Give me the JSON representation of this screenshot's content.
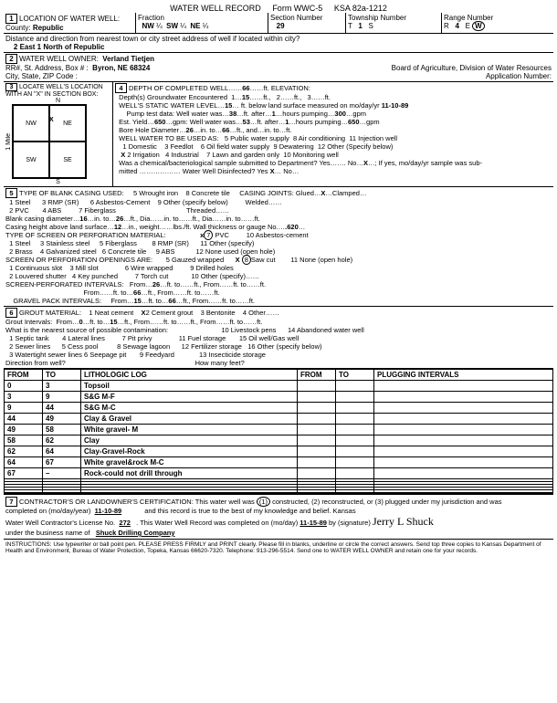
{
  "header": {
    "title": "WATER WELL RECORD",
    "form": "Form WWC-5",
    "ksa": "KSA 82a-1212"
  },
  "s1": {
    "label": "LOCATION OF WATER WELL:",
    "county_label": "County:",
    "county": "Republic",
    "fraction_label": "Fraction",
    "frac1": "NW",
    "frac2": "SW",
    "frac3": "NE",
    "section_label": "Section Number",
    "section": "29",
    "township_label": "Township Number",
    "township_t": "T",
    "township_n": "1",
    "township_s": "S",
    "range_label": "Range Number",
    "range_r": "R",
    "range_n": "4",
    "range_w": "W",
    "distance_label": "Distance and direction from nearest town or city street address of well if located within city?",
    "distance": "2 East   1 North   of Republic"
  },
  "s2": {
    "label": "WATER WELL OWNER:",
    "owner": "Verland Tietjen",
    "addr_label": "RR#, St. Address, Box # :",
    "addr": "Byron, NE 68324",
    "city_label": "City, State, ZIP Code",
    "board": "Board of Agriculture, Division of Water Resources",
    "appnum": "Application Number:"
  },
  "s3": {
    "label": "LOCATE WELL'S LOCATION WITH AN \"X\" IN SECTION BOX:",
    "nw": "NW",
    "ne": "NE",
    "sw": "SW",
    "se": "SE",
    "n": "N",
    "s": "S",
    "e": "E",
    "w": "W",
    "mile": "1 Mile"
  },
  "s4": {
    "label": "DEPTH OF COMPLETED WELL",
    "depth": "66",
    "elev_label": "ft. ELEVATION:",
    "gw_label": "Depth(s) Groundwater Encountered",
    "gw1": "15",
    "static_label": "WELL'S STATIC WATER LEVEL",
    "static": "15",
    "static_date": "11-10-89",
    "pump_label": "Pump test data: Well water was",
    "pump_ft": "38",
    "pump_after": "1",
    "pump_gpm": "300",
    "yield_label": "Est. Yield",
    "yield": "650",
    "ww_was": "53",
    "ww_after": "1",
    "ww_gpm": "650",
    "bore_label": "Bore Hole Diameter",
    "bore1": "26",
    "bore2": "66",
    "use_label": "WELL WATER TO BE USED AS:",
    "u1": "1 Domestic",
    "u2": "3 Feedlot",
    "u5": "5 Public water supply",
    "u8": "8 Air conditioning",
    "u11": "11 Injection well",
    "u2b": "2 Irrigation",
    "u4": "4 Industrial",
    "u6": "6 Oil field water supply",
    "u9": "9 Dewatering",
    "u12": "12 Other (Specify below)",
    "u7": "7 Lawn and garden only",
    "u10": "10 Monitoring well",
    "chem": "Was a chemical/bacteriological sample submitted to Department? Yes……. No",
    "disinfect": "Water Well Disinfected? Yes",
    "x": "X",
    "mark": "X"
  },
  "s5": {
    "label": "TYPE OF BLANK CASING USED:",
    "t1": "1 Steel",
    "t2": "2 PVC",
    "t3": "3 RMP (SR)",
    "t4": "4 ABS",
    "t5": "5 Wrought iron",
    "t6": "6 Asbestos-Cement",
    "t7": "7 Fiberglass",
    "t8": "8 Concrete tile",
    "t9": "9 Other (specify below)",
    "joints": "CASING JOINTS: Glued",
    "welded": "Welded",
    "threaded": "Threaded",
    "clamped": "Clamped",
    "bcd_label": "Blank casing diameter",
    "bcd1": "16",
    "bcd2": "26",
    "ch_label": "Casing height above land surface",
    "ch": "12",
    "gauge": ".620",
    "screen_label": "TYPE OF SCREEN OR PERFORATION MATERIAL:",
    "sc1": "1 Steel",
    "sc2": "2 Brass",
    "sc3": "3 Stainless steel",
    "sc4": "4 Galvanized steel",
    "sc5": "5 Fiberglass",
    "sc6": "6 Concrete tile",
    "sc7": "7 PVC",
    "sc8": "8 RMP (SR)",
    "sc9": "9 ABS",
    "sc10": "10 Asbestos-cement",
    "sc11": "11 Other (specify)",
    "sc12": "12 None used (open hole)",
    "open_label": "SCREEN OR PERFORATION OPENINGS ARE:",
    "o1": "1 Continuous slot",
    "o2": "2 Louvered shutter",
    "o3": "3 Mill slot",
    "o4": "4 Key punched",
    "o5": "5 Gauzed wrapped",
    "o6": "6 Wire wrapped",
    "o7": "7 Torch cut",
    "o8": "Saw cut",
    "o9": "9 Drilled holes",
    "o10": "10 Other (specify)",
    "o11": "11 None (open hole)",
    "spi": "SCREEN-PERFORATED INTERVALS:",
    "spi1": "26",
    "spi2": "66",
    "gpi": "GRAVEL PACK INTERVALS:",
    "gpi1": "15",
    "gpi2": "66",
    "mark7": "x",
    "mark8": "8",
    "markX": "X"
  },
  "s6": {
    "label": "GROUT MATERIAL:",
    "g1": "1 Neat cement",
    "g2": "2 Cement grout",
    "g3": "3 Bentonite",
    "g4": "4 Other",
    "mark": "X",
    "gi": "Grout Intervals:",
    "gi1": "0",
    "gi2": "15",
    "contam": "What is the nearest source of possible contamination:",
    "c1": "1 Septic tank",
    "c2": "2 Sewer lines",
    "c3": "3 Watertight sewer lines",
    "c4": "4 Lateral lines",
    "c5": "5 Cess pool",
    "c6": "6 Seepage pit",
    "c7": "7 Pit privy",
    "c8": "8 Sewage lagoon",
    "c9": "9 Feedyard",
    "c10": "10 Livestock pens",
    "c11": "11 Fuel storage",
    "c12": "12 Fertilizer storage",
    "c13": "13 Insecticide storage",
    "c14": "14 Abandoned water well",
    "c15": "15 Oil well/Gas well",
    "c16": "16 Other (specify below)",
    "dir": "Direction from well?",
    "how": "How many feet?"
  },
  "log": {
    "h1": "FROM",
    "h2": "TO",
    "h3": "LITHOLOGIC LOG",
    "h4": "FROM",
    "h5": "TO",
    "h6": "PLUGGING INTERVALS",
    "rows": [
      {
        "f": "0",
        "t": "3",
        "d": "Topsoil"
      },
      {
        "f": "3",
        "t": "9",
        "d": "S&G M-F"
      },
      {
        "f": "9",
        "t": "44",
        "d": "S&G M-C"
      },
      {
        "f": "44",
        "t": "49",
        "d": "Clay & Gravel"
      },
      {
        "f": "49",
        "t": "58",
        "d": "White gravel- M"
      },
      {
        "f": "58",
        "t": "62",
        "d": "Clay"
      },
      {
        "f": "62",
        "t": "64",
        "d": "Clay-Gravel-Rock"
      },
      {
        "f": "64",
        "t": "67",
        "d": "White gravel&rock  M-C"
      },
      {
        "f": "67",
        "t": "–",
        "d": "Rock-could not drill through"
      }
    ]
  },
  "s7": {
    "label": "CONTRACTOR'S OR LANDOWNER'S CERTIFICATION: This water well was",
    "c1": "(1)",
    "constructed": "constructed, (2) reconstructed, or (3) plugged under my jurisdiction and was",
    "completed": "completed on (mo/day/year)",
    "date1": "11-10-89",
    "record": "and this record is true to the best of my knowledge and belief. Kansas",
    "lic": "Water Well Contractor's License No.",
    "licno": "272",
    "rec2": "This Water Well Record was completed on (mo/day)",
    "date2": "11-15-89",
    "by": "by (signature)",
    "sig": "Jerry L Shuck",
    "bus": "under the business name of",
    "busname": "Shuck Drilling Company",
    "instr": "INSTRUCTIONS: Use typewriter or ball point pen. PLEASE PRESS FIRMLY and PRINT clearly. Please fill in blanks, underline or circle the correct answers. Send top three copies to Kansas Department of Health and Environment, Bureau of Water Protection, Topeka, Kansas 66620-7320. Telephone: 913-296-5514. Send one to WATER WELL OWNER and retain one for your records."
  }
}
